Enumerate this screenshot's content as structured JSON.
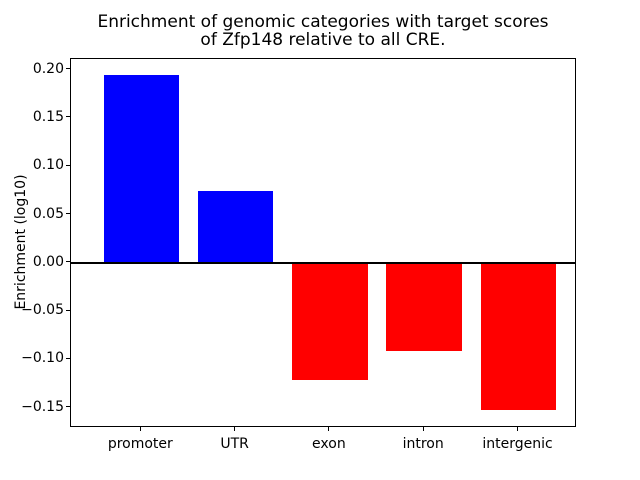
{
  "figure": {
    "background": "#ffffff"
  },
  "chart_data": {
    "type": "bar",
    "title": "Enrichment of genomic categories with target scores\nof Zfp148 relative to all CRE.",
    "xlabel": "",
    "ylabel": "Enrichment (log10)",
    "categories": [
      "promoter",
      "UTR",
      "exon",
      "intron",
      "intergenic"
    ],
    "values": [
      0.194,
      0.074,
      -0.121,
      -0.091,
      -0.152
    ],
    "bar_colors": [
      "#0000ff",
      "#0000ff",
      "#ff0000",
      "#ff0000",
      "#ff0000"
    ],
    "positive_color": "#0000ff",
    "negative_color": "#ff0000",
    "ylim": [
      -0.171,
      0.211
    ],
    "ytick_values": [
      0.2,
      0.15,
      0.1,
      0.05,
      0.0,
      -0.05,
      -0.1,
      -0.15
    ],
    "ytick_labels": [
      "0.20",
      "0.15",
      "0.10",
      "0.05",
      "0.00",
      "−0.05",
      "−0.10",
      "−0.15"
    ],
    "grid": false,
    "legend": false,
    "zero_line": true,
    "bar_width_fraction": 0.8
  }
}
